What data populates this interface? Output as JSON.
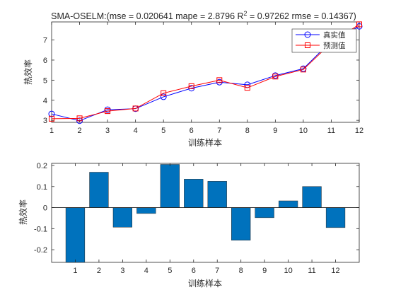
{
  "chart_data": [
    {
      "type": "line",
      "title_prefix": "SMA-OSELM:(mse = 0.020641 mape = 2.8796  R",
      "title_sup": "2",
      "title_suffix": " = 0.97262 rmse = 0.14367)",
      "xlabel": "训练样本",
      "ylabel": "热效率",
      "xlim": [
        1,
        12
      ],
      "ylim": [
        2.9,
        7.9
      ],
      "x_ticks": [
        "1",
        "2",
        "3",
        "4",
        "5",
        "6",
        "7",
        "8",
        "9",
        "10",
        "11",
        "12"
      ],
      "y_ticks": [
        "3",
        "4",
        "5",
        "6",
        "7"
      ],
      "x": [
        1,
        2,
        3,
        4,
        5,
        6,
        7,
        8,
        9,
        10,
        11,
        12
      ],
      "series": [
        {
          "name": "真实值",
          "color": "#0000ff",
          "marker": "circle",
          "values": [
            3.32,
            2.98,
            3.53,
            3.58,
            4.17,
            4.6,
            4.9,
            4.77,
            5.23,
            5.57,
            6.95,
            7.68
          ]
        },
        {
          "name": "预测值",
          "color": "#ff0000",
          "marker": "square",
          "values": [
            3.08,
            3.1,
            3.46,
            3.59,
            4.35,
            4.7,
            5.0,
            4.62,
            5.18,
            5.53,
            6.85,
            7.78
          ]
        }
      ],
      "legend": "top-right",
      "grid": false
    },
    {
      "type": "bar",
      "xlabel": "训练样本",
      "ylabel": "热效率",
      "xlim": [
        0,
        13
      ],
      "ylim": [
        -0.26,
        0.21
      ],
      "categories": [
        "1",
        "2",
        "3",
        "4",
        "5",
        "6",
        "7",
        "8",
        "9",
        "10",
        "11",
        "12"
      ],
      "y_ticks": [
        "0.2",
        "0.1",
        "0",
        "-0.1",
        "-0.2"
      ],
      "values": [
        -0.265,
        0.168,
        -0.093,
        -0.028,
        0.205,
        0.135,
        0.125,
        -0.155,
        -0.048,
        0.032,
        0.1,
        -0.095
      ],
      "bar_color": "#0072bd",
      "grid": false
    }
  ]
}
